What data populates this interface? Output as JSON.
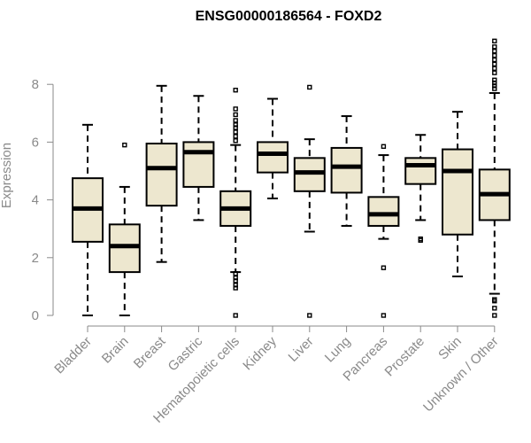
{
  "chart_data": {
    "type": "boxplot",
    "title": "ENSG00000186564 - FOXD2",
    "xlabel": "",
    "ylabel": "Expression",
    "ylim": [
      0,
      9.5
    ],
    "yticks": [
      0,
      2,
      4,
      6,
      8
    ],
    "categories": [
      "Bladder",
      "Brain",
      "Breast",
      "Gastric",
      "Hematopoietic cells",
      "Kidney",
      "Liver",
      "Lung",
      "Pancreas",
      "Prostate",
      "Skin",
      "Unknown / Other"
    ],
    "boxes": [
      {
        "name": "Bladder",
        "min": 0,
        "q1": 2.55,
        "median": 3.7,
        "q3": 4.75,
        "max": 6.6,
        "outliers": []
      },
      {
        "name": "Brain",
        "min": 0,
        "q1": 1.5,
        "median": 2.4,
        "q3": 3.15,
        "max": 4.45,
        "outliers": [
          5.9
        ]
      },
      {
        "name": "Breast",
        "min": 1.85,
        "q1": 3.8,
        "median": 5.1,
        "q3": 5.95,
        "max": 7.95,
        "outliers": []
      },
      {
        "name": "Gastric",
        "min": 3.3,
        "q1": 4.45,
        "median": 5.65,
        "q3": 6.0,
        "max": 7.6,
        "outliers": []
      },
      {
        "name": "Hematopoietic cells",
        "min": 1.5,
        "q1": 3.1,
        "median": 3.7,
        "q3": 4.3,
        "max": 5.9,
        "outliers": [
          0.0,
          0.95,
          1.05,
          1.2,
          1.3,
          1.45,
          6.05,
          6.2,
          6.35,
          6.5,
          6.6,
          6.75,
          6.95,
          7.15,
          7.8
        ]
      },
      {
        "name": "Kidney",
        "min": 4.05,
        "q1": 4.95,
        "median": 5.6,
        "q3": 6.0,
        "max": 7.5,
        "outliers": []
      },
      {
        "name": "Liver",
        "min": 2.9,
        "q1": 4.3,
        "median": 4.95,
        "q3": 5.45,
        "max": 6.1,
        "outliers": [
          0.0,
          7.9
        ]
      },
      {
        "name": "Lung",
        "min": 3.1,
        "q1": 4.25,
        "median": 5.15,
        "q3": 5.8,
        "max": 6.9,
        "outliers": []
      },
      {
        "name": "Pancreas",
        "min": 2.65,
        "q1": 3.1,
        "median": 3.5,
        "q3": 4.1,
        "max": 5.55,
        "outliers": [
          0.0,
          1.65,
          5.85
        ]
      },
      {
        "name": "Prostate",
        "min": 3.3,
        "q1": 4.55,
        "median": 5.2,
        "q3": 5.45,
        "max": 6.25,
        "outliers": [
          2.6,
          2.65
        ]
      },
      {
        "name": "Skin",
        "min": 1.35,
        "q1": 2.8,
        "median": 5.0,
        "q3": 5.75,
        "max": 7.05,
        "outliers": []
      },
      {
        "name": "Unknown / Other",
        "min": 0.75,
        "q1": 3.3,
        "median": 4.2,
        "q3": 5.05,
        "max": 7.7,
        "outliers": [
          0.0,
          0.25,
          0.5,
          0.55,
          7.85,
          7.95,
          8.05,
          8.15,
          8.4,
          8.55,
          8.7,
          8.85,
          9.0,
          9.15,
          9.3,
          9.5
        ]
      }
    ]
  }
}
